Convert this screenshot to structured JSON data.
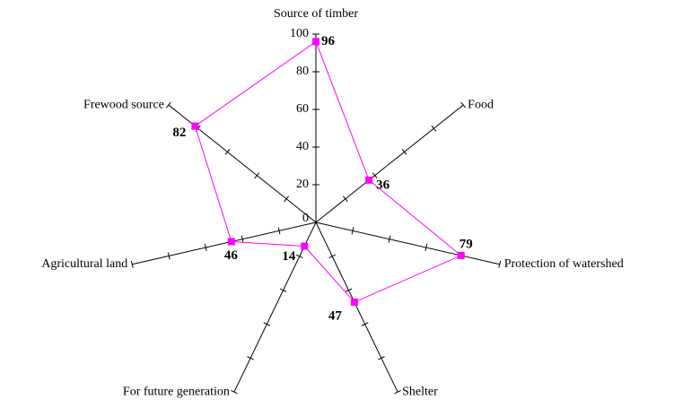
{
  "chart_data": {
    "type": "radar",
    "categories": [
      "Source of timber",
      "Food",
      "Protection of watershed",
      "Shelter",
      "For future generation",
      "Agricultural land",
      "Frewood source"
    ],
    "values": [
      96,
      36,
      79,
      47,
      14,
      46,
      82
    ],
    "color": "#ff00ff",
    "rlim": [
      0,
      100
    ],
    "rticks": [
      0,
      20,
      40,
      60,
      80,
      100
    ]
  }
}
